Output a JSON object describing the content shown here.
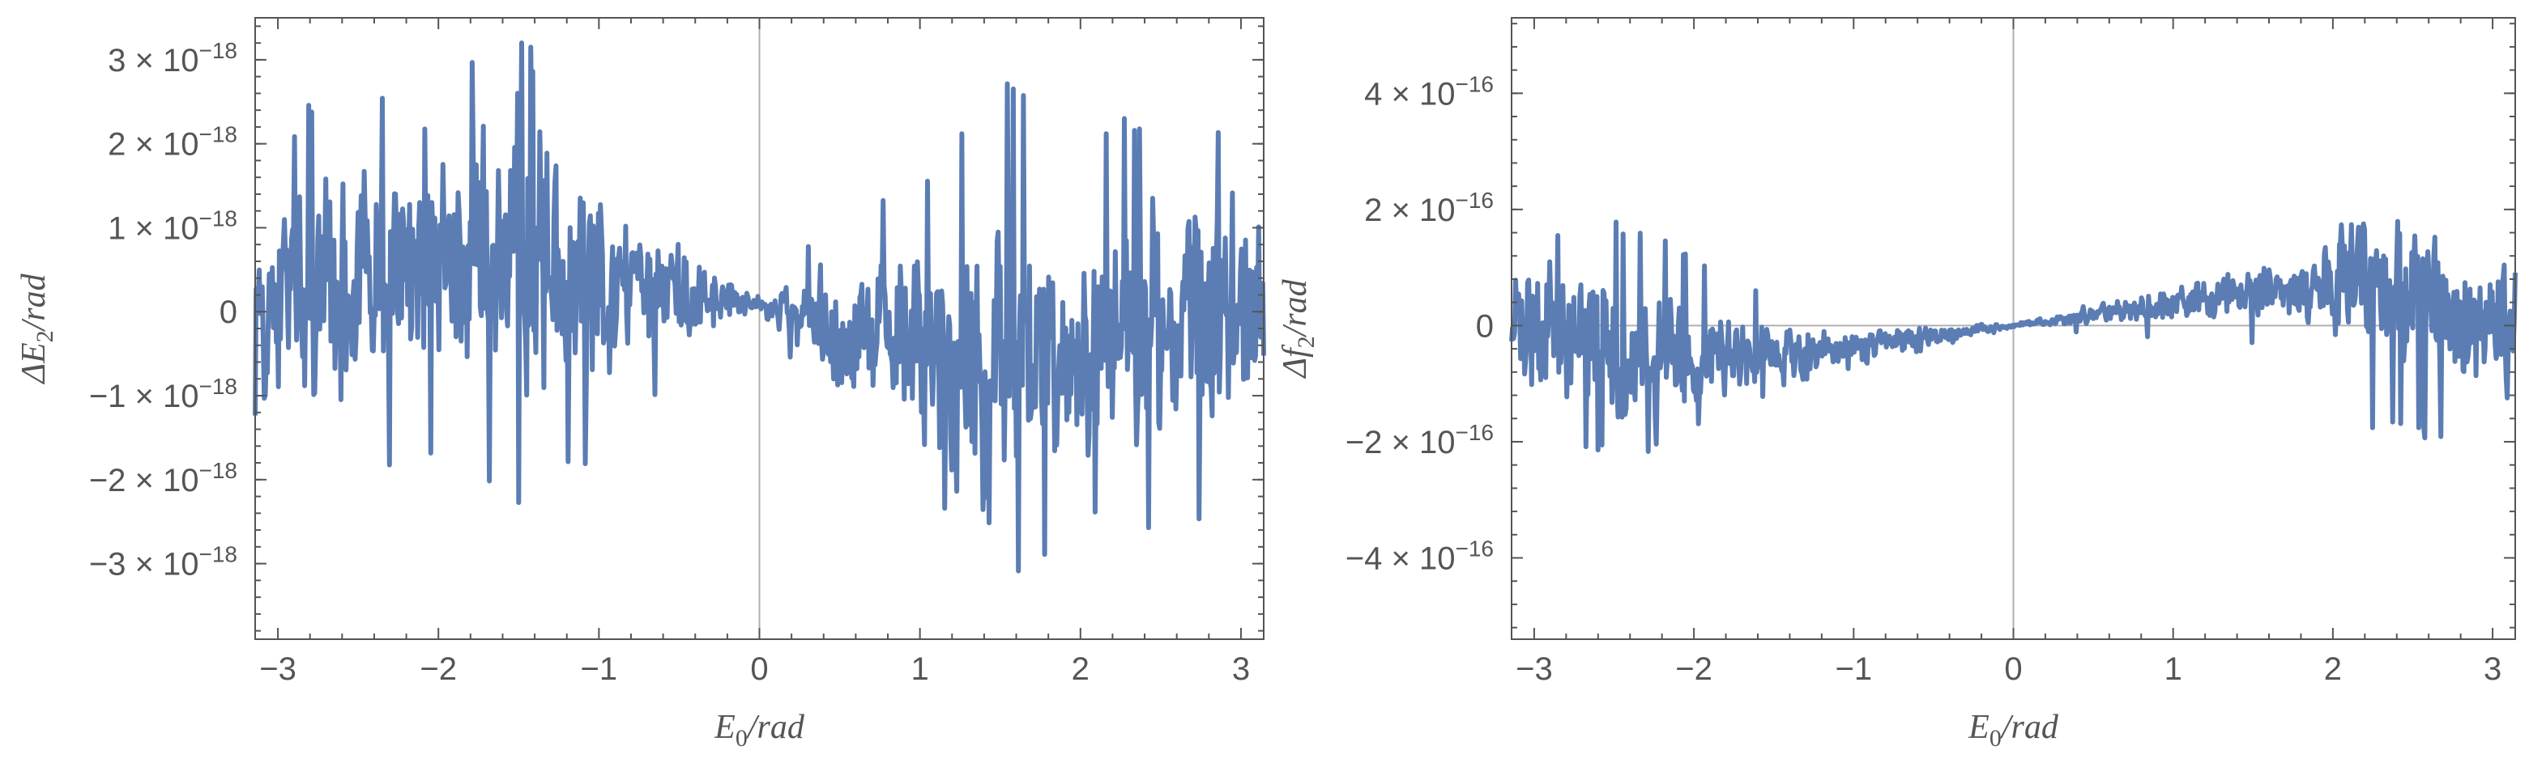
{
  "chart_data": [
    {
      "type": "line",
      "title": "",
      "xlabel": "E",
      "xlabel_sub": "0",
      "xlabel_suffix": "/rad",
      "ylabel": "ΔE",
      "ylabel_sub": "2",
      "ylabel_suffix": "/rad",
      "xlim": [
        -3.1416,
        3.1416
      ],
      "ylim": [
        -3.9e-18,
        3.5e-18
      ],
      "x_ticks": [
        -3,
        -2,
        -1,
        0,
        1,
        2,
        3
      ],
      "x_tick_labels": [
        "−3",
        "−2",
        "−1",
        "0",
        "1",
        "2",
        "3"
      ],
      "y_ticks": [
        {
          "value": 3e-18,
          "mantissa": "3 × 10",
          "exponent": "−18"
        },
        {
          "value": 2e-18,
          "mantissa": "2 × 10",
          "exponent": "−18"
        },
        {
          "value": 1e-18,
          "mantissa": "1 × 10",
          "exponent": "−18"
        },
        {
          "value": 0,
          "mantissa": "0",
          "exponent": ""
        },
        {
          "value": -1e-18,
          "mantissa": "−1 × 10",
          "exponent": "−18"
        },
        {
          "value": -2e-18,
          "mantissa": "−2 × 10",
          "exponent": "−18"
        },
        {
          "value": -3e-18,
          "mantissa": "−3 × 10",
          "exponent": "−18"
        }
      ],
      "series": [
        {
          "color": "#5b7db4",
          "x_range": [
            -3.1416,
            3.1416
          ],
          "num_points": 1000,
          "envelope": [
            {
              "x": -3.14,
              "amp": 2.1e-18
            },
            {
              "x": -2.6,
              "amp": 2.6e-18
            },
            {
              "x": -2.0,
              "amp": 2e-18
            },
            {
              "x": -1.6,
              "amp": 3.1e-18
            },
            {
              "x": -1.2,
              "amp": 2.4e-18
            },
            {
              "x": -0.6,
              "amp": 1.2e-18
            },
            {
              "x": 0.0,
              "amp": 1.5e-19
            },
            {
              "x": 0.6,
              "amp": 1.5e-18
            },
            {
              "x": 1.0,
              "amp": 1.9e-18
            },
            {
              "x": 1.5,
              "amp": 3.4e-18
            },
            {
              "x": 2.0,
              "amp": 2.2e-18
            },
            {
              "x": 2.5,
              "amp": 2.7e-18
            },
            {
              "x": 3.14,
              "amp": 2.2e-18
            }
          ],
          "trend": [
            {
              "x": -3.14,
              "y": 0.0
            },
            {
              "x": -1.6,
              "y": 1.5e-18
            },
            {
              "x": -0.8,
              "y": 7e-19
            },
            {
              "x": 0.0,
              "y": 1e-19
            },
            {
              "x": 0.8,
              "y": -6e-19
            },
            {
              "x": 1.5,
              "y": -1.6e-18
            },
            {
              "x": 2.2,
              "y": -2e-19
            },
            {
              "x": 3.14,
              "y": 2e-19
            }
          ]
        }
      ]
    },
    {
      "type": "line",
      "title": "",
      "xlabel": "E",
      "xlabel_sub": "0",
      "xlabel_suffix": "/rad",
      "ylabel": "Δf",
      "ylabel_sub": "2",
      "ylabel_suffix": "/rad",
      "xlim": [
        -3.1416,
        3.1416
      ],
      "ylim": [
        -5.4e-16,
        5.3e-16
      ],
      "x_ticks": [
        -3,
        -2,
        -1,
        0,
        1,
        2,
        3
      ],
      "x_tick_labels": [
        "−3",
        "−2",
        "−1",
        "0",
        "1",
        "2",
        "3"
      ],
      "y_ticks": [
        {
          "value": 4e-16,
          "mantissa": "4 × 10",
          "exponent": "−16"
        },
        {
          "value": 2e-16,
          "mantissa": "2 × 10",
          "exponent": "−16"
        },
        {
          "value": 0,
          "mantissa": "0",
          "exponent": ""
        },
        {
          "value": -2e-16,
          "mantissa": "−2 × 10",
          "exponent": "−16"
        },
        {
          "value": -4e-16,
          "mantissa": "−4 × 10",
          "exponent": "−16"
        }
      ],
      "series": [
        {
          "color": "#5b7db4",
          "x_range": [
            -3.1416,
            3.1416
          ],
          "num_points": 1000,
          "envelope": [
            {
              "x": -3.14,
              "amp": 1.8e-16
            },
            {
              "x": -2.4,
              "amp": 2.2e-16
            },
            {
              "x": -1.8,
              "amp": 1.1e-16
            },
            {
              "x": -1.0,
              "amp": 5e-17
            },
            {
              "x": 0.0,
              "amp": 5e-18
            },
            {
              "x": 1.0,
              "amp": 5e-17
            },
            {
              "x": 1.8,
              "amp": 8e-17
            },
            {
              "x": 2.2,
              "amp": 2.4e-16
            },
            {
              "x": 3.14,
              "amp": 1.8e-16
            }
          ],
          "trend": [
            {
              "x": -3.14,
              "y": 0.0
            },
            {
              "x": -2.4,
              "y": -1e-16
            },
            {
              "x": -1.5,
              "y": -1.1e-16
            },
            {
              "x": 0.0,
              "y": 0.0
            },
            {
              "x": 1.5,
              "y": 1.1e-16
            },
            {
              "x": 2.3,
              "y": 1.1e-16
            },
            {
              "x": 3.14,
              "y": 0.0
            }
          ]
        }
      ]
    }
  ]
}
